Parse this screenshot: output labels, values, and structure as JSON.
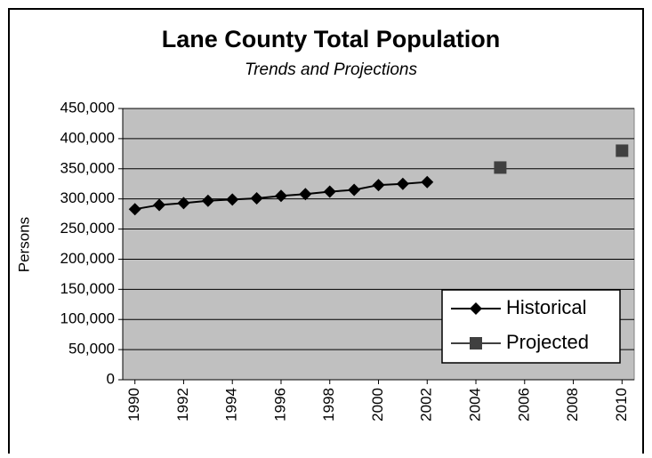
{
  "chart_data": {
    "type": "line",
    "title": "Lane County Total Population",
    "subtitle": "Trends and Projections",
    "y_label": "Persons",
    "x": [
      1990,
      1991,
      1992,
      1993,
      1994,
      1995,
      1996,
      1997,
      1998,
      1999,
      2000,
      2001,
      2002,
      2003,
      2004,
      2005,
      2006,
      2007,
      2008,
      2009,
      2010
    ],
    "series": [
      {
        "name": "Historical",
        "color": "#000000",
        "marker": "diamond",
        "values": [
          283000,
          290000,
          293000,
          297000,
          299000,
          301000,
          305000,
          308000,
          312000,
          315000,
          323000,
          325000,
          328000,
          null,
          null,
          null,
          null,
          null,
          null,
          null,
          null
        ]
      },
      {
        "name": "Projected",
        "color": "#404040",
        "marker": "square",
        "values": [
          null,
          null,
          null,
          null,
          null,
          null,
          null,
          null,
          null,
          null,
          null,
          null,
          null,
          null,
          null,
          352000,
          null,
          null,
          null,
          null,
          380000
        ]
      }
    ],
    "xlim": [
      1989.5,
      2010.5
    ],
    "xticks": [
      1990,
      1992,
      1994,
      1996,
      1998,
      2000,
      2002,
      2004,
      2006,
      2008,
      2010
    ],
    "ylim": [
      0,
      450000
    ],
    "yticks": [
      0,
      {
        "value": 50000,
        "label": "50,000"
      },
      {
        "value": 100000,
        "label": "100,000"
      },
      {
        "value": 150000,
        "label": "150,000"
      },
      {
        "value": 200000,
        "label": "200,000"
      },
      {
        "value": 250000,
        "label": "250,000"
      },
      {
        "value": 300000,
        "label": "300,000"
      },
      {
        "value": 350000,
        "label": "350,000"
      },
      {
        "value": 400000,
        "label": "400,000"
      },
      {
        "value": 450000,
        "label": "450,000"
      }
    ],
    "grid": true,
    "legend": "bottom-right",
    "plot_background": "#c0c0c0"
  }
}
